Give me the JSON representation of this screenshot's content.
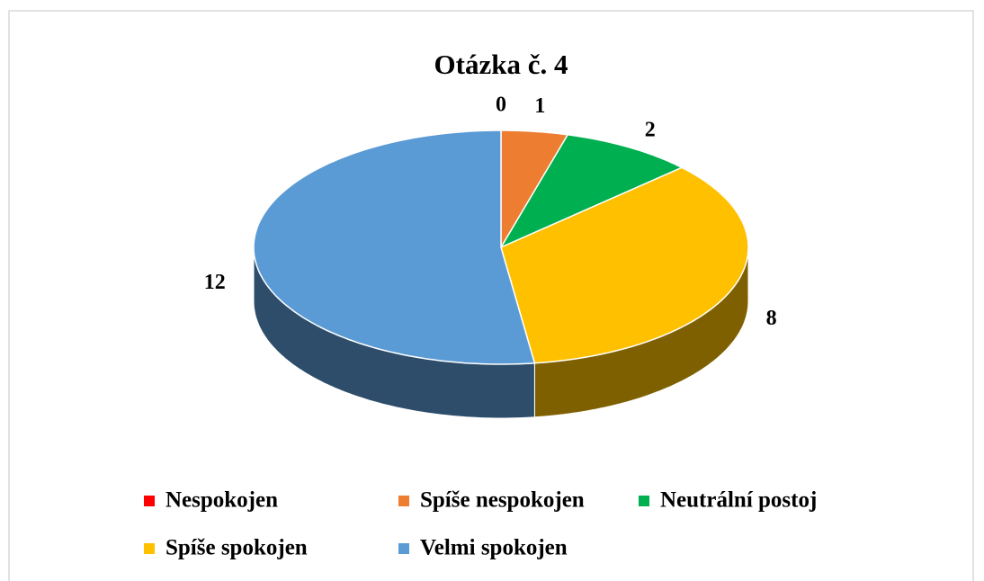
{
  "chart_data": {
    "type": "pie",
    "title": "Otázka č. 4",
    "categories": [
      "Nespokojen",
      "Spíše nespokojen",
      "Neutrální postoj",
      "Spíše spokojen",
      "Velmi spokojen"
    ],
    "values": [
      0,
      1,
      2,
      8,
      12
    ],
    "colors": [
      "#ff0000",
      "#ed7d31",
      "#00b050",
      "#ffc000",
      "#5b9bd5"
    ],
    "three_d": true,
    "legend": "bottom"
  }
}
